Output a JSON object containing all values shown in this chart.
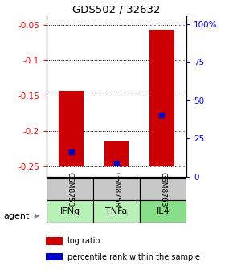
{
  "title": "GDS502 / 32632",
  "categories": [
    "IFNg",
    "TNFa",
    "IL4"
  ],
  "sample_ids": [
    "GSM8753",
    "GSM8758",
    "GSM8763"
  ],
  "ylim_left": [
    -0.265,
    -0.038
  ],
  "ylim_right": [
    0,
    105
  ],
  "yticks_left": [
    -0.25,
    -0.2,
    -0.15,
    -0.1,
    -0.05
  ],
  "ytick_labels_left": [
    "-0.25",
    "-0.2",
    "-0.15",
    "-0.1",
    "-0.05"
  ],
  "yticks_right": [
    0,
    25,
    50,
    75,
    100
  ],
  "ytick_labels_right": [
    "0",
    "25",
    "50",
    "75",
    "100%"
  ],
  "bar_baseline": -0.25,
  "bar_tops": [
    -0.143,
    -0.215,
    -0.057
  ],
  "percentile_raw": [
    0.1,
    0.02,
    0.36
  ],
  "bar_color": "#cc0000",
  "percentile_color": "#0000cc",
  "sample_bg": "#c8c8c8",
  "agent_colors": [
    "#b8f0b8",
    "#b8f0b8",
    "#88dd88"
  ],
  "grid_linestyle": "dotted",
  "bar_width": 0.55,
  "agent_label": "agent",
  "legend_items": [
    "log ratio",
    "percentile rank within the sample"
  ],
  "legend_colors": [
    "#cc0000",
    "#0000cc"
  ],
  "figsize": [
    2.9,
    3.36
  ],
  "dpi": 100
}
